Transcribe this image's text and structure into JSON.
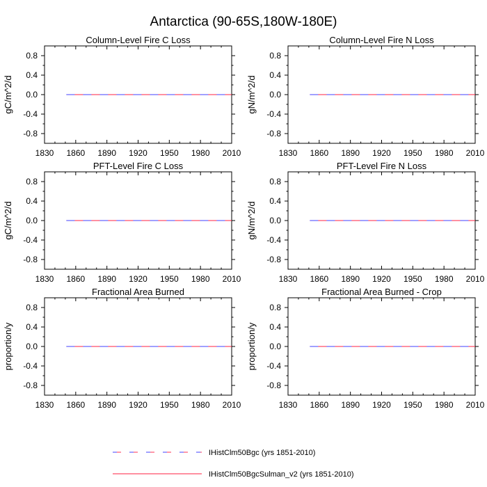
{
  "figure": {
    "title": "Antarctica (90-65S,180W-180E)"
  },
  "legend": {
    "entries": [
      {
        "label": "IHistClm50Bgc (yrs 1851-2010)",
        "color": "#4040ff",
        "style": "dashed"
      },
      {
        "label": "IHistClm50BgcSulman_v2 (yrs 1851-2010)",
        "color": "#ff2040",
        "style": "solid"
      }
    ]
  },
  "chart_data": [
    {
      "type": "line",
      "title": "Column-Level Fire C Loss",
      "xlabel": "",
      "ylabel": "gC/m^2/d",
      "xlim": [
        1830,
        2010
      ],
      "ylim": [
        -1,
        1
      ],
      "xticks": [
        1830,
        1860,
        1890,
        1920,
        1950,
        1980,
        2010
      ],
      "yticks": [
        -0.8,
        -0.4,
        0.0,
        0.4,
        0.8
      ],
      "ytick_labels": [
        "-0.8",
        "-0.4",
        "0.0",
        "0.4",
        "0.8"
      ],
      "series": [
        {
          "name": "IHistClm50Bgc (yrs 1851-2010)",
          "x": [
            1851,
            2010
          ],
          "y": [
            0,
            0
          ]
        },
        {
          "name": "IHistClm50BgcSulman_v2 (yrs 1851-2010)",
          "x": [
            1851,
            2010
          ],
          "y": [
            0,
            0
          ]
        }
      ]
    },
    {
      "type": "line",
      "title": "Column-Level Fire N Loss",
      "xlabel": "",
      "ylabel": "gN/m^2/d",
      "xlim": [
        1830,
        2010
      ],
      "ylim": [
        -1,
        1
      ],
      "xticks": [
        1830,
        1860,
        1890,
        1920,
        1950,
        1980,
        2010
      ],
      "yticks": [
        -0.8,
        -0.4,
        0.0,
        0.4,
        0.8
      ],
      "ytick_labels": [
        "-0.8",
        "-0.4",
        "0.0",
        "0.4",
        "0.8"
      ],
      "series": [
        {
          "name": "IHistClm50Bgc (yrs 1851-2010)",
          "x": [
            1851,
            2010
          ],
          "y": [
            0,
            0
          ]
        },
        {
          "name": "IHistClm50BgcSulman_v2 (yrs 1851-2010)",
          "x": [
            1851,
            2010
          ],
          "y": [
            0,
            0
          ]
        }
      ]
    },
    {
      "type": "line",
      "title": "PFT-Level Fire C Loss",
      "xlabel": "",
      "ylabel": "gC/m^2/d",
      "xlim": [
        1830,
        2010
      ],
      "ylim": [
        -1,
        1
      ],
      "xticks": [
        1830,
        1860,
        1890,
        1920,
        1950,
        1980,
        2010
      ],
      "yticks": [
        -0.8,
        -0.4,
        0.0,
        0.4,
        0.8
      ],
      "ytick_labels": [
        "-0.8",
        "-0.4",
        "0.0",
        "0.4",
        "0.8"
      ],
      "series": [
        {
          "name": "IHistClm50Bgc (yrs 1851-2010)",
          "x": [
            1851,
            2010
          ],
          "y": [
            0,
            0
          ]
        },
        {
          "name": "IHistClm50BgcSulman_v2 (yrs 1851-2010)",
          "x": [
            1851,
            2010
          ],
          "y": [
            0,
            0
          ]
        }
      ]
    },
    {
      "type": "line",
      "title": "PFT-Level Fire N Loss",
      "xlabel": "",
      "ylabel": "gN/m^2/d",
      "xlim": [
        1830,
        2010
      ],
      "ylim": [
        -1,
        1
      ],
      "xticks": [
        1830,
        1860,
        1890,
        1920,
        1950,
        1980,
        2010
      ],
      "yticks": [
        -0.8,
        -0.4,
        0.0,
        0.4,
        0.8
      ],
      "ytick_labels": [
        "-0.8",
        "-0.4",
        "0.0",
        "0.4",
        "0.8"
      ],
      "series": [
        {
          "name": "IHistClm50Bgc (yrs 1851-2010)",
          "x": [
            1851,
            2010
          ],
          "y": [
            0,
            0
          ]
        },
        {
          "name": "IHistClm50BgcSulman_v2 (yrs 1851-2010)",
          "x": [
            1851,
            2010
          ],
          "y": [
            0,
            0
          ]
        }
      ]
    },
    {
      "type": "line",
      "title": "Fractional Area Burned",
      "xlabel": "",
      "ylabel": "proportion/y",
      "xlim": [
        1830,
        2010
      ],
      "ylim": [
        -1,
        1
      ],
      "xticks": [
        1830,
        1860,
        1890,
        1920,
        1950,
        1980,
        2010
      ],
      "yticks": [
        -0.8,
        -0.4,
        0.0,
        0.4,
        0.8
      ],
      "ytick_labels": [
        "-0.8",
        "-0.4",
        "0.0",
        "0.4",
        "0.8"
      ],
      "series": [
        {
          "name": "IHistClm50Bgc (yrs 1851-2010)",
          "x": [
            1851,
            2010
          ],
          "y": [
            0,
            0
          ]
        },
        {
          "name": "IHistClm50BgcSulman_v2 (yrs 1851-2010)",
          "x": [
            1851,
            2010
          ],
          "y": [
            0,
            0
          ]
        }
      ]
    },
    {
      "type": "line",
      "title": "Fractional Area Burned - Crop",
      "xlabel": "",
      "ylabel": "proportion/y",
      "xlim": [
        1830,
        2010
      ],
      "ylim": [
        -1,
        1
      ],
      "xticks": [
        1830,
        1860,
        1890,
        1920,
        1950,
        1980,
        2010
      ],
      "yticks": [
        -0.8,
        -0.4,
        0.0,
        0.4,
        0.8
      ],
      "ytick_labels": [
        "-0.8",
        "-0.4",
        "0.0",
        "0.4",
        "0.8"
      ],
      "series": [
        {
          "name": "IHistClm50Bgc (yrs 1851-2010)",
          "x": [
            1851,
            2010
          ],
          "y": [
            0,
            0
          ]
        },
        {
          "name": "IHistClm50BgcSulman_v2 (yrs 1851-2010)",
          "x": [
            1851,
            2010
          ],
          "y": [
            0,
            0
          ]
        }
      ]
    }
  ]
}
